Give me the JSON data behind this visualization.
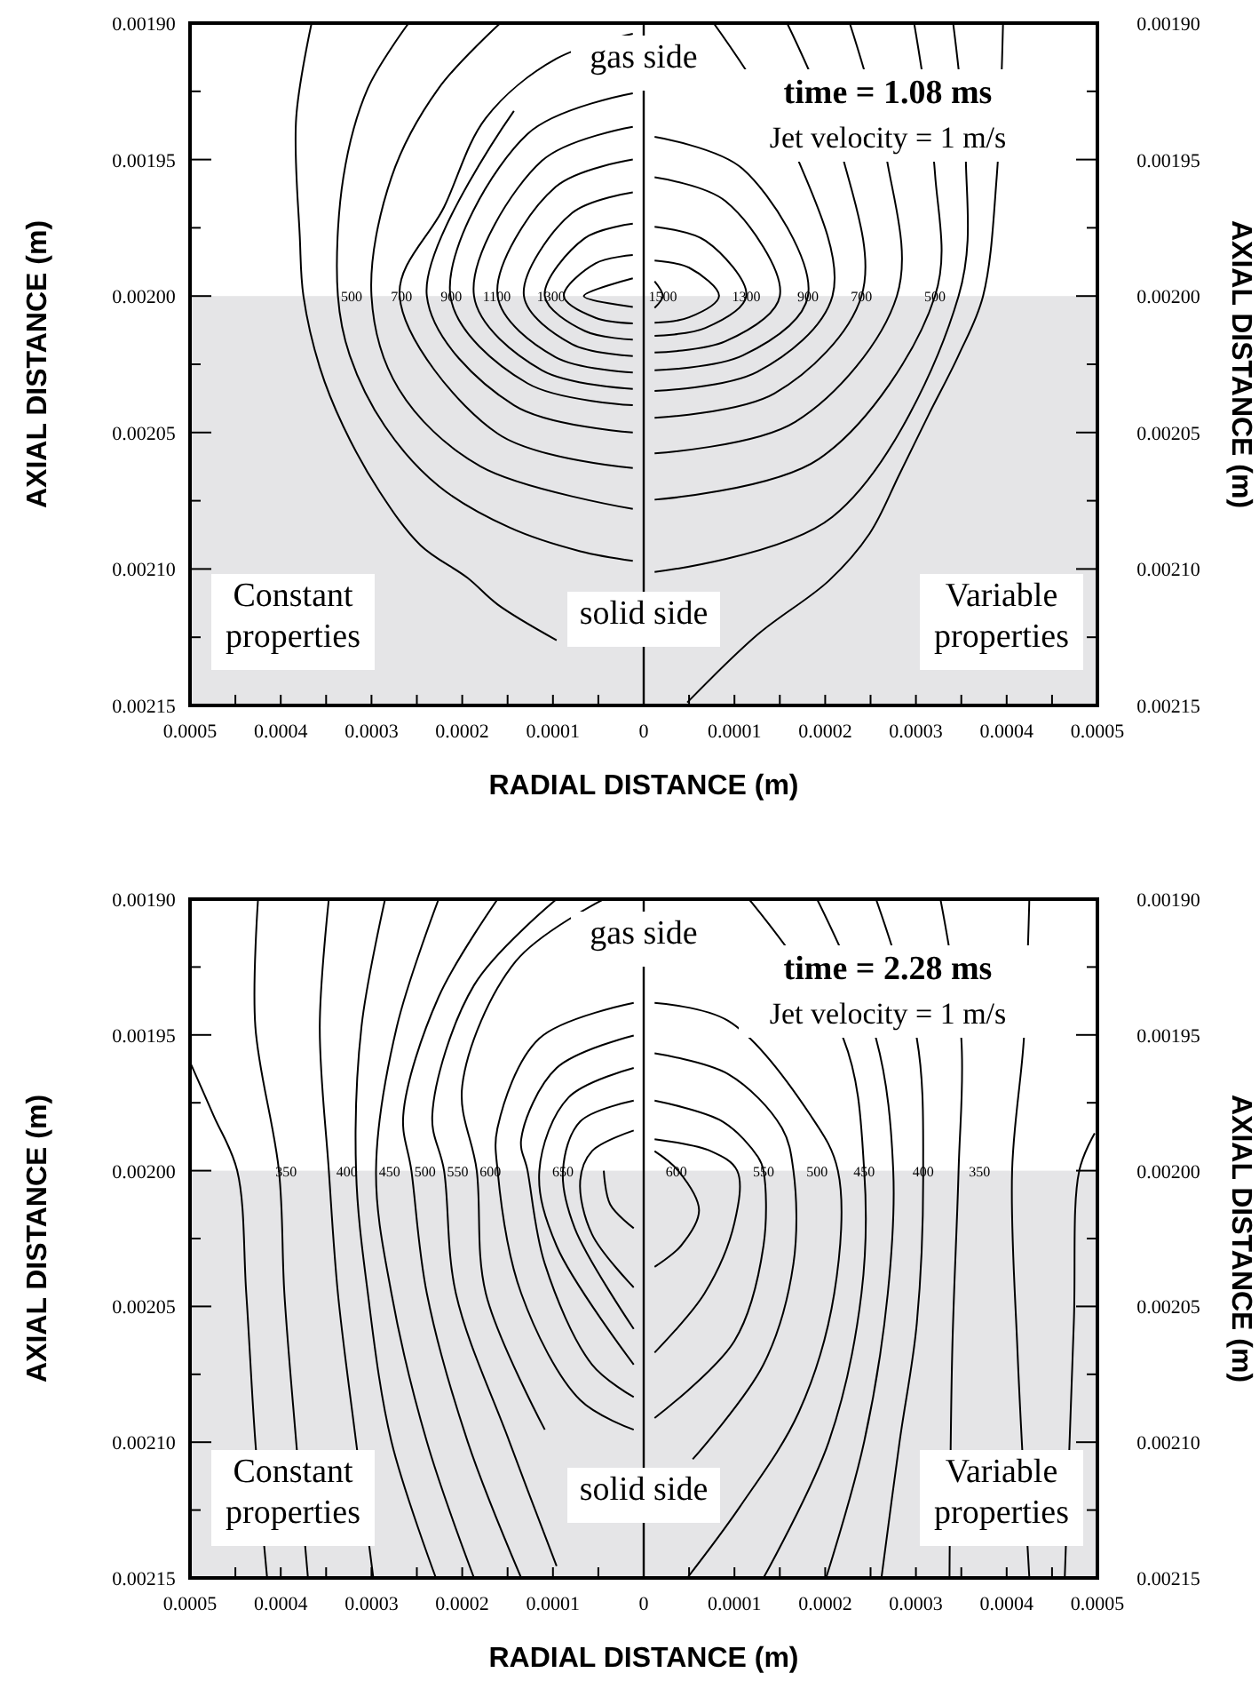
{
  "chart_data": [
    {
      "type": "line",
      "title": "time = 1.08 ms",
      "subtitle": "Jet velocity = 1 m/s",
      "xlabel": "RADIAL DISTANCE (m)",
      "ylabel": "AXIAL DISTANCE (m)",
      "y2label": "AXIAL DISTANCE (m)",
      "color": "#000000",
      "xlim": [
        -0.0005,
        0.0005
      ],
      "ylim": [
        0.00215,
        0.0019
      ],
      "y2lim": [
        0.00215,
        0.0019
      ],
      "xticks": [
        {
          "value": -0.0005,
          "label": "0.0005"
        },
        {
          "value": -0.00045,
          "label": null
        },
        {
          "value": -0.0004,
          "label": "0.0004"
        },
        {
          "value": -0.00035,
          "label": null
        },
        {
          "value": -0.0003,
          "label": "0.0003"
        },
        {
          "value": -0.00025,
          "label": null
        },
        {
          "value": -0.0002,
          "label": "0.0002"
        },
        {
          "value": -0.00015,
          "label": null
        },
        {
          "value": -0.0001,
          "label": "0.0001"
        },
        {
          "value": -5e-05,
          "label": null
        },
        0,
        {
          "value": 5e-05,
          "label": null
        },
        0.0001,
        {
          "value": 0.00015,
          "label": null
        },
        0.0002,
        {
          "value": 0.00025,
          "label": null
        },
        0.0003,
        {
          "value": 0.00035,
          "label": null
        },
        0.0004,
        {
          "value": 0.00045,
          "label": null
        },
        0.0005
      ],
      "yticks": [
        {
          "value": 0.0019,
          "label": "0.00190"
        },
        {
          "value": 0.001925,
          "label": null
        },
        {
          "value": 0.00195,
          "label": "0.00195"
        },
        {
          "value": 0.001975,
          "label": null
        },
        {
          "value": 0.002,
          "label": "0.00200"
        },
        {
          "value": 0.002025,
          "label": null
        },
        {
          "value": 0.00205,
          "label": "0.00205"
        },
        {
          "value": 0.002075,
          "label": null
        },
        {
          "value": 0.0021,
          "label": "0.00210"
        },
        {
          "value": 0.002125,
          "label": null
        },
        {
          "value": 0.00215,
          "label": "0.00215"
        }
      ],
      "y2ticks": [
        {
          "value": 0.0019,
          "label": "0.00190"
        },
        {
          "value": 0.001925,
          "label": null
        },
        {
          "value": 0.00195,
          "label": "0.00195"
        },
        {
          "value": 0.001975,
          "label": null
        },
        {
          "value": 0.002,
          "label": "0.00200"
        },
        {
          "value": 0.002025,
          "label": null
        },
        {
          "value": 0.00205,
          "label": "0.00205"
        },
        {
          "value": 0.002075,
          "label": null
        },
        {
          "value": 0.0021,
          "label": "0.00210"
        },
        {
          "value": 0.002125,
          "label": null
        },
        {
          "value": 0.00215,
          "label": "0.00215"
        }
      ],
      "bands": [
        {
          "axis": "y",
          "from": 0.002,
          "to": 0.00215,
          "color": "#e5e5e7"
        }
      ],
      "ref_lines": [
        {
          "axis": "x",
          "value": 0
        }
      ],
      "annotations": [
        "gas side",
        "solid side",
        "Constant properties",
        "Variable properties",
        {
          "text": "500",
          "x": -0.000322,
          "y": 0.002
        },
        {
          "text": "700",
          "x": -0.000267,
          "y": 0.002
        },
        {
          "text": "900",
          "x": -0.000212,
          "y": 0.002
        },
        {
          "text": "1100",
          "x": -0.000162,
          "y": 0.002
        },
        {
          "text": "1300",
          "x": -0.000102,
          "y": 0.002
        },
        {
          "text": "1500",
          "x": 2.1e-05,
          "y": 0.002
        },
        {
          "text": "1300",
          "x": 0.000113,
          "y": 0.002
        },
        {
          "text": "900",
          "x": 0.000181,
          "y": 0.002
        },
        {
          "text": "700",
          "x": 0.00024,
          "y": 0.002
        },
        {
          "text": "500",
          "x": 0.000321,
          "y": 0.002
        }
      ],
      "series": [
        {
          "x": [
            -1.2e-05,
            -6.6e-05,
            -1.2e-05
          ],
          "values": [
            0.0019935,
            0.002,
            0.002004
          ]
        },
        {
          "x": [
            -1.2e-05,
            -5.3e-05,
            -8.8e-05,
            -5.3e-05,
            -1.2e-05
          ],
          "values": [
            0.001985,
            0.001988,
            0.002,
            0.002008,
            0.00201
          ]
        },
        {
          "x": [
            -1.2e-05,
            -6.5e-05,
            -0.000109,
            -6.5e-05,
            -1.2e-05
          ],
          "values": [
            0.0019735,
            0.0019788,
            0.002,
            0.0020128,
            0.002016
          ]
        },
        {
          "x": [
            -1.2e-05,
            -7.9e-05,
            -0.000132,
            -7.9e-05,
            -1.2e-05
          ],
          "values": [
            0.001962,
            0.0019696,
            0.002,
            0.0020176,
            0.002022
          ]
        },
        {
          "x": [
            -1.2e-05,
            -9.7e-05,
            -0.000161,
            -9.7e-05,
            -1.2e-05
          ],
          "values": [
            0.00195,
            0.00196,
            0.002,
            0.0020224,
            0.002028
          ]
        },
        {
          "x": [
            -1.2e-05,
            -0.000112,
            -0.000187,
            -0.000112,
            -1.2e-05
          ],
          "values": [
            0.001938,
            0.0019504,
            0.002,
            0.0020272,
            0.002034
          ]
        },
        {
          "x": [
            -1.2e-05,
            -0.000128,
            -0.000213,
            -0.000128,
            -1.2e-05
          ],
          "values": [
            0.0019257,
            0.0019406,
            0.002,
            0.002032,
            0.00204
          ]
        },
        {
          "x": [
            null,
            -0.000143,
            -0.000239,
            -0.000143,
            -1.2e-05
          ],
          "values": [
            null,
            0.0019322,
            0.002,
            0.00204,
            0.00205
          ]
        },
        {
          "x": [
            -1.2e-05,
            -9.6e-05,
            -0.000174,
            -0.00022,
            -0.000269,
            -0.000161,
            -1.2e-05
          ],
          "values": [
            0.0019039,
            0.001913,
            0.0019348,
            0.0019674,
            0.002,
            0.0020504,
            0.002063
          ]
        },
        {
          "x": [
            -0.000158,
            -0.000226,
            -0.000278,
            -0.0003,
            -0.00027,
            -0.00018,
            -1.2e-05
          ],
          "values": [
            0.0019,
            0.0019239,
            0.0019565,
            0.002,
            0.002034,
            0.0020624,
            0.002078
          ]
        },
        {
          "x": [
            -0.000259,
            -0.000304,
            -0.000331,
            -0.000337,
            -0.000324,
            -0.000285,
            -0.000226,
            -0.000148,
            -7e-05,
            -1.2e-05
          ],
          "values": [
            0.0019,
            0.0019239,
            0.0019565,
            0.002,
            0.0020217,
            0.0020478,
            0.0020696,
            0.0020848,
            0.0020935,
            0.002097
          ]
        },
        {
          "x": [
            -0.000366,
            -0.000383,
            -0.000379,
            -0.000375,
            -0.000357,
            -0.000331,
            -0.000291,
            -0.000246,
            -0.000194,
            -0.000161,
            -9.6e-05
          ],
          "values": [
            0.0019,
            0.0019348,
            0.0019783,
            0.002,
            0.0020261,
            0.0020478,
            0.0020717,
            0.0020913,
            0.0021033,
            0.002113,
            0.0021261
          ]
        },
        {
          "x": [
            1.2e-05,
            2.1e-05,
            1.2e-05
          ],
          "values": [
            0.0019946,
            0.002,
            0.0020043
          ]
        },
        {
          "x": [
            1.2e-05,
            5e-05,
            8.3e-05,
            5e-05,
            1.2e-05
          ],
          "values": [
            0.001987,
            0.0019896,
            0.002,
            0.0020078,
            0.0020098
          ]
        },
        {
          "x": [
            1.2e-05,
            6.8e-05,
            0.000113,
            6.8e-05,
            1.2e-05
          ],
          "values": [
            0.0019746,
            0.0019797,
            0.002,
            0.0020117,
            0.0020146
          ]
        },
        {
          "x": [
            1.2e-05,
            9e-05,
            0.00015,
            9e-05,
            1.2e-05
          ],
          "values": [
            0.0019565,
            0.0019652,
            0.002,
            0.0020166,
            0.0020207
          ]
        },
        {
          "x": [
            1.2e-05,
            0.000109,
            0.000181,
            0.000109,
            1.2e-05
          ],
          "values": [
            0.0019417,
            0.0019534,
            0.002,
            0.0020218,
            0.0020272
          ]
        },
        {
          "x": [
            7.7e-05,
            0.00017,
            0.000208,
            0.000125,
            1.2e-05
          ],
          "values": [
            0.0019,
            0.00195,
            0.002,
            0.0020278,
            0.0020348
          ]
        },
        {
          "x": [
            0.000158,
            0.00022,
            0.00024,
            0.000144,
            1.2e-05
          ],
          "values": [
            0.0019,
            0.00195,
            0.002,
            0.0020357,
            0.0020446
          ]
        },
        {
          "x": [
            0.000227,
            0.000268,
            0.000279,
            0.000167,
            1.2e-05
          ],
          "values": [
            0.0019,
            0.00195,
            0.002,
            0.0020461,
            0.0020576
          ]
        },
        {
          "x": [
            0.000298,
            0.000321,
            0.000321,
            0.000193,
            1.2e-05
          ],
          "values": [
            0.0019,
            0.001955,
            0.002,
            0.0020597,
            0.0020746
          ]
        },
        {
          "x": [
            0.000341,
            0.000355,
            0.000347,
            0.000208,
            1.2e-05
          ],
          "values": [
            0.0019,
            0.00195,
            0.002,
            0.0020809,
            0.0021011
          ]
        },
        {
          "x": [
            0.000396,
            0.000389,
            0.000374,
            0.000347,
            0.000314,
            0.000282,
            0.000249,
            0.000204,
            0.000126,
            4.8e-05
          ],
          "values": [
            0.0019,
            0.0019565,
            0.002,
            0.0020217,
            0.0020435,
            0.0020652,
            0.002087,
            0.0021043,
            0.0021239,
            0.0021489
          ]
        }
      ]
    },
    {
      "type": "line",
      "title": "time = 2.28 ms",
      "subtitle": "Jet velocity = 1 m/s",
      "xlabel": "RADIAL DISTANCE (m)",
      "ylabel": "AXIAL DISTANCE (m)",
      "y2label": "AXIAL DISTANCE (m)",
      "color": "#000000",
      "xlim": [
        -0.0005,
        0.0005
      ],
      "ylim": [
        0.00215,
        0.0019
      ],
      "y2lim": [
        0.00215,
        0.0019
      ],
      "xticks": [
        {
          "value": -0.0005,
          "label": "0.0005"
        },
        {
          "value": -0.00045,
          "label": null
        },
        {
          "value": -0.0004,
          "label": "0.0004"
        },
        {
          "value": -0.00035,
          "label": null
        },
        {
          "value": -0.0003,
          "label": "0.0003"
        },
        {
          "value": -0.00025,
          "label": null
        },
        {
          "value": -0.0002,
          "label": "0.0002"
        },
        {
          "value": -0.00015,
          "label": null
        },
        {
          "value": -0.0001,
          "label": "0.0001"
        },
        {
          "value": -5e-05,
          "label": null
        },
        0,
        {
          "value": 5e-05,
          "label": null
        },
        0.0001,
        {
          "value": 0.00015,
          "label": null
        },
        0.0002,
        {
          "value": 0.00025,
          "label": null
        },
        0.0003,
        {
          "value": 0.00035,
          "label": null
        },
        0.0004,
        {
          "value": 0.00045,
          "label": null
        },
        0.0005
      ],
      "yticks": [
        {
          "value": 0.0019,
          "label": "0.00190"
        },
        {
          "value": 0.001925,
          "label": null
        },
        {
          "value": 0.00195,
          "label": "0.00195"
        },
        {
          "value": 0.001975,
          "label": null
        },
        {
          "value": 0.002,
          "label": "0.00200"
        },
        {
          "value": 0.002025,
          "label": null
        },
        {
          "value": 0.00205,
          "label": "0.00205"
        },
        {
          "value": 0.002075,
          "label": null
        },
        {
          "value": 0.0021,
          "label": "0.00210"
        },
        {
          "value": 0.002125,
          "label": null
        },
        {
          "value": 0.00215,
          "label": "0.00215"
        }
      ],
      "y2ticks": [
        {
          "value": 0.0019,
          "label": "0.00190"
        },
        {
          "value": 0.001925,
          "label": null
        },
        {
          "value": 0.00195,
          "label": "0.00195"
        },
        {
          "value": 0.001975,
          "label": null
        },
        {
          "value": 0.002,
          "label": "0.00200"
        },
        {
          "value": 0.002025,
          "label": null
        },
        {
          "value": 0.00205,
          "label": "0.00205"
        },
        {
          "value": 0.002075,
          "label": null
        },
        {
          "value": 0.0021,
          "label": "0.00210"
        },
        {
          "value": 0.002125,
          "label": null
        },
        {
          "value": 0.00215,
          "label": "0.00215"
        }
      ],
      "bands": [
        {
          "axis": "y",
          "from": 0.002,
          "to": 0.00215,
          "color": "#e5e5e7"
        }
      ],
      "ref_lines": [
        {
          "axis": "x",
          "value": 0
        }
      ],
      "annotations": [
        "gas side",
        "solid side",
        "Constant properties",
        "Variable properties",
        {
          "text": "350",
          "x": -0.000394,
          "y": 0.002
        },
        {
          "text": "400",
          "x": -0.000327,
          "y": 0.002
        },
        {
          "text": "450",
          "x": -0.00028,
          "y": 0.002
        },
        {
          "text": "500",
          "x": -0.000241,
          "y": 0.002
        },
        {
          "text": "550",
          "x": -0.000205,
          "y": 0.002
        },
        {
          "text": "600",
          "x": -0.000169,
          "y": 0.002
        },
        {
          "text": "650",
          "x": -8.9e-05,
          "y": 0.002
        },
        {
          "text": "600",
          "x": 3.6e-05,
          "y": 0.002
        },
        {
          "text": "550",
          "x": 0.000132,
          "y": 0.002
        },
        {
          "text": "500",
          "x": 0.000191,
          "y": 0.002
        },
        {
          "text": "450",
          "x": 0.000243,
          "y": 0.002
        },
        {
          "text": "400",
          "x": 0.000308,
          "y": 0.002
        },
        {
          "text": "350",
          "x": 0.00037,
          "y": 0.002
        }
      ],
      "series": [
        {
          "x": [
            -0.0005,
            -0.000474,
            -0.000448,
            -0.000438,
            -0.000428,
            -0.000415
          ],
          "values": [
            0.00196,
            0.0019797,
            0.002,
            0.0020452,
            0.0020998,
            0.00215
          ]
        },
        {
          "x": [
            -0.000425,
            -0.000428,
            -0.000402,
            -0.000396,
            -0.000383,
            -0.00037
          ],
          "values": [
            0.0019,
            0.0019469,
            0.002,
            0.0020452,
            0.0020998,
            0.00215
          ]
        },
        {
          "x": [
            -0.000347,
            -0.000357,
            -0.000347,
            -0.000337,
            -0.000317,
            -0.000298
          ],
          "values": [
            0.0019,
            0.0019469,
            0.002,
            0.0020452,
            0.0020998,
            0.00215
          ]
        },
        {
          "x": [
            -0.000285,
            -0.000311,
            -0.000317,
            -0.000304,
            -0.000278,
            -0.000229
          ],
          "values": [
            0.0019,
            0.0019469,
            0.002,
            0.0020452,
            0.0020998,
            0.00215
          ]
        },
        {
          "x": [
            -0.000226,
            -0.000272,
            -0.000295,
            -0.000278,
            -0.000239,
            -0.000187
          ],
          "values": [
            0.0019,
            0.0019469,
            0.002,
            0.0020452,
            0.0020998,
            0.00215
          ]
        },
        {
          "x": [
            -0.000161,
            -0.000226,
            -0.000265,
            -0.000256,
            -0.000239,
            -0.000194,
            -0.000135
          ],
          "values": [
            0.0019,
            0.001936,
            0.0019797,
            0.002,
            0.0020452,
            0.0020998,
            0.00215
          ]
        },
        {
          "x": [
            -9.6e-05,
            -0.000187,
            -0.000233,
            -0.00022,
            -0.000207,
            -0.000148,
            -9.6e-05
          ],
          "values": [
            0.0019,
            0.0019317,
            0.0019797,
            0.002,
            0.0020452,
            0.0020998,
            0.0021456
          ]
        },
        {
          "x": [
            -4.4e-05,
            -0.000141,
            -0.0002,
            -0.000184,
            -0.000174,
            -0.000109,
            null
          ],
          "values": [
            0.0019,
            0.0019229,
            0.0019688,
            0.002,
            0.0020452,
            0.0020954,
            null
          ]
        },
        {
          "x": [
            -1.1e-05,
            -0.000115,
            -0.000161,
            -0.000161,
            -0.000135,
            -7e-05,
            -1.1e-05
          ],
          "values": [
            0.0019382,
            0.0019513,
            0.0019841,
            0.002,
            0.0020452,
            0.0020845,
            0.0020954
          ]
        },
        {
          "x": [
            -1.1e-05,
            -9.6e-05,
            -0.000135,
            -0.000128,
            -0.000109,
            -5.7e-05,
            -1.1e-05
          ],
          "values": [
            0.0019502,
            0.0019622,
            0.0019884,
            0.002,
            0.0020343,
            0.0020714,
            0.0020834
          ]
        },
        {
          "x": [
            -1.1e-05,
            -8.3e-05,
            -0.000115,
            -9.6e-05,
            -1.1e-05
          ],
          "values": [
            0.0019622,
            0.0019731,
            0.002,
            0.0020277,
            0.0020714
          ]
        },
        {
          "x": [
            -1.1e-05,
            -7e-05,
            -8.9e-05,
            -7.6e-05,
            -1.1e-05
          ],
          "values": [
            0.0019742,
            0.0019819,
            0.002,
            0.0020212,
            0.0020583
          ]
        },
        {
          "x": [
            -1.1e-05,
            -5.7e-05,
            -7e-05,
            -5.7e-05,
            -1.1e-05
          ],
          "values": [
            0.0019852,
            0.0019928,
            0.0020037,
            0.0020234,
            0.002043
          ]
        },
        {
          "x": [
            -4.4e-05,
            -3.7e-05,
            -1.1e-05
          ],
          "values": [
            0.002,
            0.0020124,
            0.0020212
          ]
        },
        {
          "x": [
            0.000497,
            0.00048,
            0.000474,
            0.000464
          ],
          "values": [
            0.0019862,
            0.002,
            0.0020561,
            0.00215
          ]
        },
        {
          "x": [
            0.000425,
            0.000419,
            0.000406,
            0.000412,
            0.000425
          ],
          "values": [
            0.0019,
            0.0019513,
            0.002,
            0.002067,
            0.00215
          ]
        },
        {
          "x": [
            0.000327,
            0.00035,
            0.000347,
            0.00034,
            0.000337
          ],
          "values": [
            0.0019,
            0.0019513,
            0.002,
            0.002067,
            0.00215
          ]
        },
        {
          "x": [
            0.000256,
            0.000301,
            0.000308,
            0.000301,
            0.000282,
            0.000262
          ],
          "values": [
            0.0019,
            0.0019513,
            0.002,
            0.0020561,
            0.0020998,
            0.00215
          ]
        },
        {
          "x": [
            0.000191,
            0.000256,
            0.000275,
            0.000269,
            0.000243,
            0.000201
          ],
          "values": [
            0.0019,
            0.0019513,
            0.002,
            0.0020452,
            0.0020998,
            0.00215
          ]
        },
        {
          "x": [
            0.000116,
            0.00022,
            0.000243,
            0.00024,
            0.000204,
            0.000132
          ],
          "values": [
            0.0019,
            0.0019513,
            0.002,
            0.0020452,
            0.0020998,
            0.00215
          ]
        },
        {
          "x": [
            1.2e-05,
            9.3e-05,
            0.000184,
            0.000214,
            0.00021,
            0.000171,
            0.000106,
            4.8e-05
          ],
          "values": [
            0.0019382,
            0.0019448,
            0.0019797,
            0.002,
            0.0020452,
            0.0020889,
            0.0021238,
            0.00215
          ]
        },
        {
          "x": [
            1.2e-05,
            9.3e-05,
            0.000152,
            0.000165,
            0.000165,
            0.000132,
            5.4e-05,
            null
          ],
          "values": [
            0.0019568,
            0.0019644,
            0.0019841,
            0.002,
            0.0020343,
            0.0020714,
            0.0021063,
            null
          ]
        },
        {
          "x": [
            1.2e-05,
            8.7e-05,
            0.000126,
            0.000132,
            0.000132,
            0.0001,
            1.2e-05
          ],
          "values": [
            0.0019742,
            0.0019819,
            0.001995,
            0.002,
            0.0020277,
            0.0020627,
            0.0020911
          ]
        },
        {
          "x": [
            1.2e-05,
            7.4e-05,
            0.000103,
            0.0001,
            6.7e-05,
            1.2e-05
          ],
          "values": [
            0.0019884,
            0.0019928,
            0.002,
            0.0020192,
            0.0020452,
            0.002067
          ]
        },
        {
          "x": [
            1.2e-05,
            3.8e-05,
            6.1e-05,
            4.1e-05,
            1.2e-05
          ],
          "values": [
            0.0019928,
            0.002,
            0.0020146,
            0.0020277,
            0.0020354
          ]
        }
      ]
    }
  ]
}
